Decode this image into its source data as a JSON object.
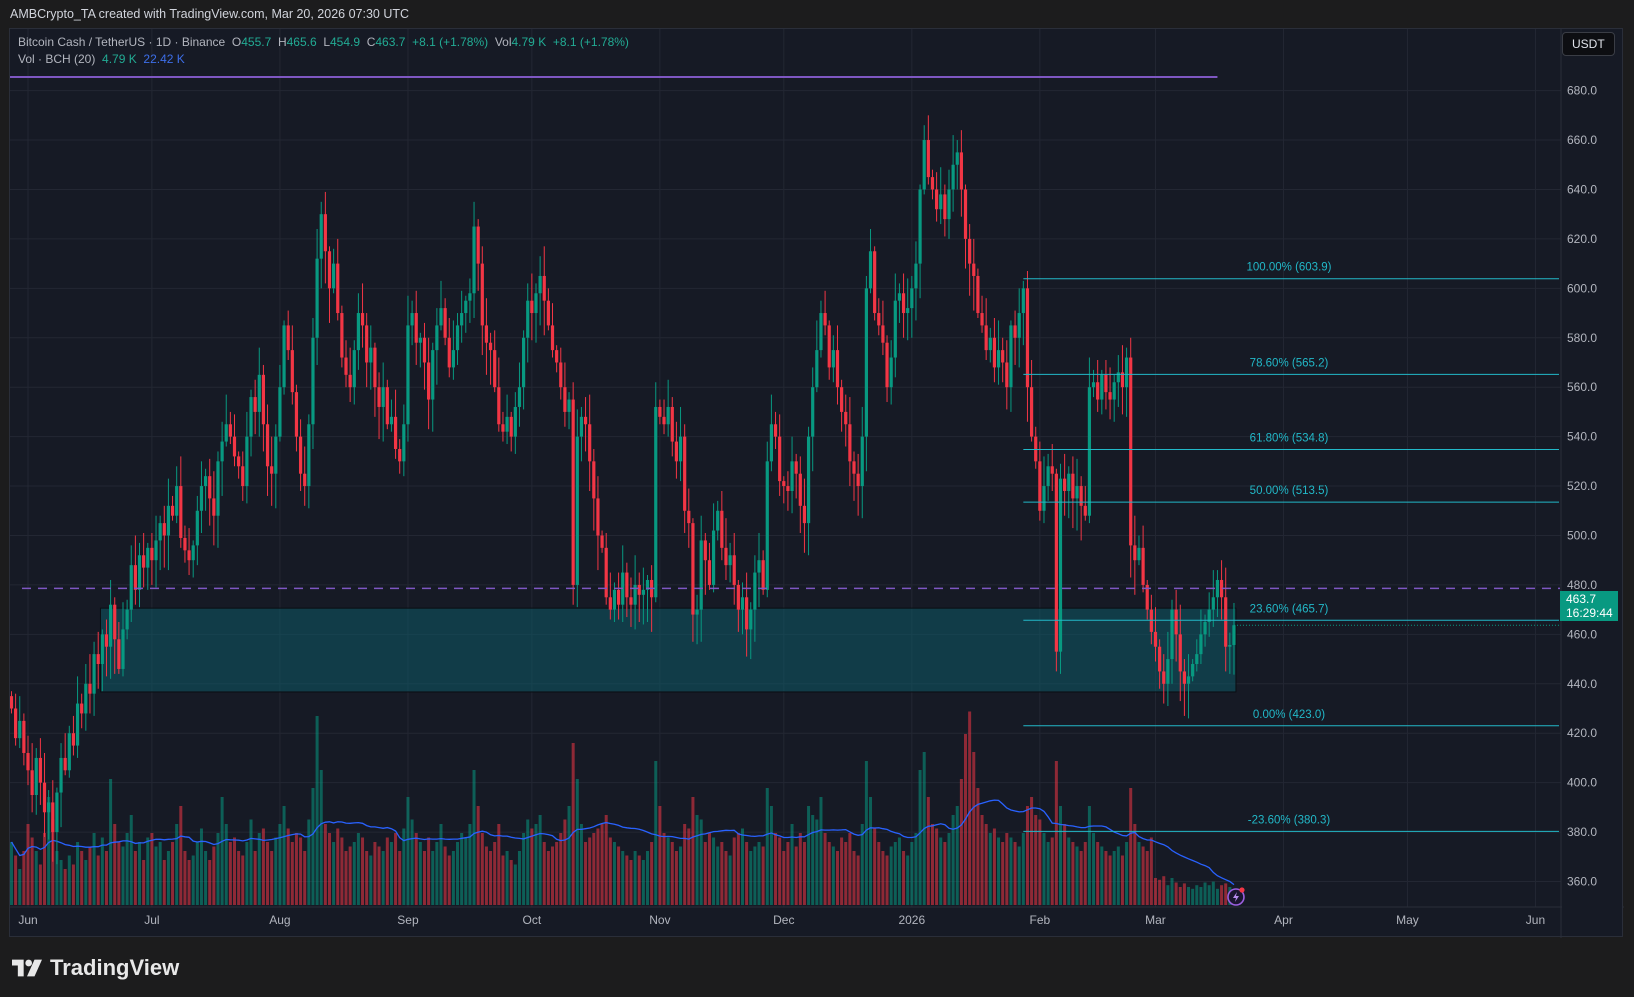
{
  "caption": "AMBCrypto_TA created with TradingView.com, Mar 20, 2026 07:30 UTC",
  "legend": {
    "symbol": "Bitcoin Cash / TetherUS · 1D · Binance",
    "o_label": "O",
    "o": "455.7",
    "h_label": "H",
    "h": "465.6",
    "l_label": "L",
    "l": "454.9",
    "c_label": "C",
    "c": "463.7",
    "change": "+8.1 (+1.78%)",
    "vol_label": "Vol",
    "vol": "4.79 K",
    "vol_change": "+8.1 (+1.78%)",
    "vol_indicator": "Vol · BCH (20)",
    "vol_value": "4.79 K",
    "vol_ma": "22.42 K"
  },
  "currency_button": "USDT",
  "last_price": {
    "price": "463.7",
    "countdown": "16:29:44"
  },
  "brand": "TradingView",
  "colors": {
    "up": "#089981",
    "down": "#f23645",
    "fib": "#22b8c8",
    "level": "#7e57c2",
    "zone": "#0e5a66",
    "vol_ma": "#2962ff",
    "background": "#161a25"
  },
  "chart_data": {
    "type": "candlestick",
    "ylim": [
      350,
      690
    ],
    "yticks": [
      "680.0",
      "660.0",
      "640.0",
      "620.0",
      "600.0",
      "580.0",
      "560.0",
      "540.0",
      "520.0",
      "500.0",
      "480.0",
      "460.0",
      "440.0",
      "420.0",
      "400.0",
      "380.0",
      "360.0"
    ],
    "xticks": [
      {
        "label": "Jun",
        "date": "2025-06-01"
      },
      {
        "label": "Jul",
        "date": "2025-07-01"
      },
      {
        "label": "Aug",
        "date": "2025-08-01"
      },
      {
        "label": "Sep",
        "date": "2025-09-01"
      },
      {
        "label": "Oct",
        "date": "2025-10-01"
      },
      {
        "label": "Nov",
        "date": "2025-11-01"
      },
      {
        "label": "Dec",
        "date": "2025-12-01"
      },
      {
        "label": "2026",
        "date": "2026-01-01"
      },
      {
        "label": "Feb",
        "date": "2026-02-01"
      },
      {
        "label": "Mar",
        "date": "2026-03-01"
      },
      {
        "label": "Apr",
        "date": "2026-04-01"
      },
      {
        "label": "May",
        "date": "2026-05-01"
      },
      {
        "label": "Jun",
        "date": "2026-06-01"
      }
    ],
    "volume_unit": "K",
    "volume_ma_period": 20,
    "months": [
      {
        "month": "2025-05",
        "first_day": 28,
        "close": [
          430,
          418,
          425,
          412
        ],
        "volume": [
          70,
          55,
          40,
          60
        ]
      },
      {
        "month": "2025-06",
        "close": [
          405,
          395,
          410,
          400,
          388,
          392,
          380,
          396,
          410,
          405,
          420,
          415,
          432,
          428,
          440,
          436,
          452,
          448,
          460,
          455,
          472,
          458,
          446,
          462,
          470,
          488,
          478,
          492,
          487,
          495
        ],
        "volume": [
          90,
          75,
          60,
          45,
          80,
          120,
          95,
          60,
          50,
          40,
          55,
          45,
          70,
          60,
          50,
          65,
          80,
          55,
          75,
          60,
          140,
          90,
          70,
          65,
          80,
          100,
          60,
          70,
          50,
          75
        ]
      },
      {
        "month": "2025-07",
        "close": [
          490,
          498,
          505,
          500,
          512,
          508,
          520,
          499,
          494,
          490,
          496,
          510,
          520,
          524,
          515,
          508,
          530,
          538,
          545,
          540,
          532,
          528,
          520,
          540,
          556,
          550,
          565,
          545,
          528,
          525,
          540
        ],
        "volume": [
          80,
          65,
          70,
          50,
          60,
          70,
          90,
          110,
          60,
          50,
          55,
          70,
          85,
          60,
          50,
          65,
          80,
          120,
          90,
          70,
          75,
          60,
          55,
          70,
          95,
          60,
          80,
          85,
          70,
          60,
          75
        ]
      },
      {
        "month": "2025-08",
        "close": [
          560,
          585,
          575,
          558,
          540,
          525,
          520,
          545,
          580,
          612,
          630,
          615,
          600,
          610,
          590,
          572,
          565,
          560,
          575,
          590,
          585,
          570,
          576,
          560,
          552,
          560,
          545,
          548,
          535,
          530,
          545
        ],
        "volume": [
          90,
          110,
          85,
          70,
          80,
          75,
          60,
          95,
          130,
          210,
          150,
          90,
          80,
          70,
          85,
          75,
          60,
          65,
          70,
          80,
          75,
          60,
          55,
          70,
          65,
          60,
          75,
          70,
          80,
          60,
          85
        ]
      },
      {
        "month": "2025-09",
        "close": [
          585,
          590,
          578,
          580,
          570,
          555,
          575,
          585,
          592,
          580,
          568,
          575,
          585,
          590,
          595,
          598,
          625,
          610,
          585,
          578,
          575,
          560,
          545,
          542,
          548,
          540,
          552,
          560,
          580,
          595
        ],
        "volume": [
          120,
          95,
          80,
          70,
          60,
          75,
          60,
          70,
          90,
          65,
          55,
          60,
          70,
          80,
          75,
          90,
          150,
          110,
          80,
          65,
          60,
          70,
          90,
          55,
          60,
          50,
          45,
          60,
          80,
          95
        ]
      },
      {
        "month": "2025-10",
        "close": [
          590,
          598,
          605,
          595,
          585,
          575,
          570,
          560,
          550,
          555,
          480,
          540,
          548,
          545,
          530,
          515,
          500,
          495,
          475,
          470,
          478,
          472,
          485,
          475,
          472,
          480,
          476,
          478,
          482,
          475,
          552
        ],
        "volume": [
          85,
          90,
          100,
          70,
          60,
          65,
          70,
          80,
          95,
          110,
          180,
          140,
          90,
          70,
          75,
          80,
          85,
          90,
          100,
          75,
          70,
          65,
          60,
          55,
          50,
          60,
          55,
          50,
          60,
          70,
          160
        ]
      },
      {
        "month": "2025-11",
        "close": [
          548,
          545,
          552,
          538,
          530,
          540,
          510,
          505,
          468,
          470,
          498,
          490,
          480,
          502,
          510,
          495,
          488,
          492,
          480,
          470,
          475,
          462,
          470,
          485,
          490,
          478,
          530,
          545,
          540,
          522
        ],
        "volume": [
          110,
          80,
          75,
          70,
          60,
          65,
          90,
          85,
          120,
          100,
          95,
          70,
          80,
          75,
          65,
          70,
          60,
          55,
          75,
          80,
          85,
          70,
          60,
          65,
          70,
          65,
          130,
          110,
          80,
          75
        ]
      },
      {
        "month": "2025-12",
        "close": [
          520,
          518,
          530,
          525,
          512,
          505,
          540,
          560,
          575,
          590,
          585,
          568,
          575,
          560,
          550,
          545,
          530,
          525,
          520,
          540,
          600,
          615,
          590,
          585,
          578,
          560,
          572,
          595,
          598,
          590,
          592
        ],
        "volume": [
          60,
          70,
          90,
          65,
          80,
          70,
          110,
          100,
          95,
          120,
          80,
          70,
          65,
          60,
          75,
          70,
          80,
          60,
          55,
          90,
          160,
          120,
          85,
          70,
          60,
          55,
          65,
          70,
          75,
          60,
          55
        ]
      },
      {
        "month": "2026-01",
        "close": [
          600,
          610,
          640,
          660,
          645,
          640,
          632,
          638,
          628,
          640,
          650,
          655,
          640,
          620,
          610,
          605,
          590,
          585,
          575,
          580,
          568,
          575,
          570,
          560,
          585,
          580,
          590,
          600,
          560,
          540,
          530
        ],
        "volume": [
          70,
          80,
          150,
          170,
          120,
          90,
          85,
          75,
          70,
          80,
          100,
          110,
          140,
          190,
          215,
          170,
          130,
          100,
          90,
          80,
          85,
          75,
          70,
          80,
          75,
          70,
          65,
          80,
          110,
          120,
          100
        ]
      },
      {
        "month": "2026-02",
        "close": [
          510,
          520,
          528,
          525,
          453,
          523,
          518,
          525,
          515,
          520,
          512,
          508,
          560,
          562,
          555,
          565,
          558,
          555,
          562,
          566,
          560,
          572,
          496,
          490,
          495,
          480,
          470,
          461
        ],
        "volume": [
          95,
          80,
          70,
          75,
          160,
          110,
          90,
          75,
          70,
          65,
          60,
          70,
          110,
          80,
          70,
          65,
          60,
          55,
          60,
          65,
          55,
          70,
          130,
          90,
          70,
          65,
          60,
          75
        ]
      },
      {
        "month": "2026-03",
        "close": [
          455,
          445,
          440,
          450,
          470,
          460,
          445,
          440,
          443,
          448,
          452,
          460,
          465,
          470,
          475,
          482,
          475,
          455,
          455.7,
          463.7
        ],
        "volume": [
          30,
          28,
          32,
          22,
          30,
          25,
          20,
          24,
          20,
          18,
          22,
          20,
          25,
          22,
          26,
          18,
          22,
          24,
          20,
          4.79
        ]
      }
    ],
    "fibonacci": {
      "anchor_high_date": "2026-01-28",
      "levels": [
        {
          "label": "100.00% (603.9)",
          "price": 603.9
        },
        {
          "label": "78.60% (565.2)",
          "price": 565.2
        },
        {
          "label": "61.80% (534.8)",
          "price": 534.8
        },
        {
          "label": "50.00% (513.5)",
          "price": 513.5
        },
        {
          "label": "23.60% (465.7)",
          "price": 465.7
        },
        {
          "label": "0.00% (423.0)",
          "price": 423.0
        },
        {
          "label": "-23.60% (380.3)",
          "price": 380.3
        }
      ]
    },
    "horizontal_line": {
      "price": 685.5,
      "style": "solid",
      "end_date": "2026-03-16"
    },
    "dashed_line": {
      "price": 478.6,
      "style": "dashed"
    },
    "support_zone": {
      "from": 436.7,
      "to": 470.6,
      "start_date": "2025-06-20",
      "end_date": "2026-03-20"
    }
  }
}
